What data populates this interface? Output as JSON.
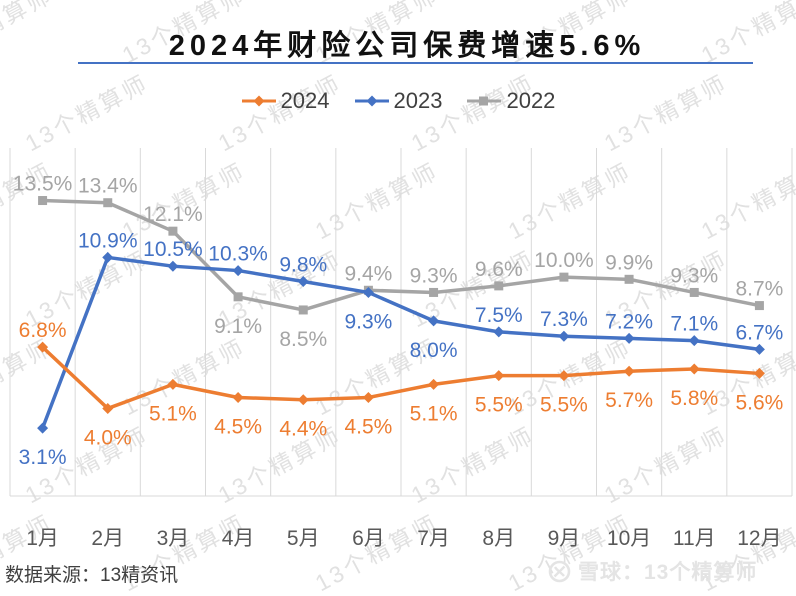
{
  "title": "2024年财险公司保费增速5.6%",
  "watermark_text": "13个精算师",
  "footer": {
    "source": "数据来源：13精资讯",
    "logo_caption": "雪球：13个精算师"
  },
  "colors": {
    "title_underline": "#4472C4",
    "gridline": "#D9D9D9",
    "axis_line": "#D9D9D9",
    "axis_label": "#595959",
    "legend_text": "#404040",
    "footer_text": "#404040",
    "watermark": "#E1E1E1",
    "logo": "#E4E4E4"
  },
  "chart_data": {
    "type": "line",
    "title": "2024年财险公司保费增速5.6%",
    "categories": [
      "1月",
      "2月",
      "3月",
      "4月",
      "5月",
      "6月",
      "7月",
      "8月",
      "9月",
      "10月",
      "11月",
      "12月"
    ],
    "series": [
      {
        "name": "2024",
        "color": "#ED7D31",
        "marker": "diamond",
        "values": [
          6.8,
          4.0,
          5.1,
          4.5,
          4.4,
          4.5,
          5.1,
          5.5,
          5.5,
          5.7,
          5.8,
          5.6
        ],
        "label_side": [
          "above",
          "below",
          "below",
          "below",
          "below",
          "below",
          "below",
          "below",
          "below",
          "below",
          "below",
          "below"
        ]
      },
      {
        "name": "2023",
        "color": "#4472C4",
        "marker": "diamond",
        "values": [
          3.1,
          10.9,
          10.5,
          10.3,
          9.8,
          9.3,
          8.0,
          7.5,
          7.3,
          7.2,
          7.1,
          6.7
        ],
        "label_side": [
          "below",
          "above",
          "above",
          "above",
          "above",
          "below",
          "below",
          "above",
          "above",
          "above",
          "above",
          "above"
        ]
      },
      {
        "name": "2022",
        "color": "#A5A5A5",
        "marker": "square",
        "values": [
          13.5,
          13.4,
          12.1,
          9.1,
          8.5,
          9.4,
          9.3,
          9.6,
          10.0,
          9.9,
          9.3,
          8.7
        ],
        "label_side": [
          "above",
          "above",
          "above",
          "below",
          "below",
          "above",
          "above",
          "above",
          "above",
          "above",
          "above",
          "above"
        ]
      }
    ],
    "label_format": "percent_1dp",
    "ylim": [
      0,
      15.9
    ],
    "grid": "vertical",
    "legend_position": "top-center",
    "data_labels": true
  }
}
